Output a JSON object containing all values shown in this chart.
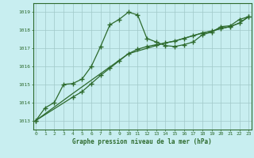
{
  "line1_x": [
    0,
    1,
    2,
    3,
    4,
    5,
    6,
    7,
    8,
    9,
    10,
    11,
    12,
    13,
    14,
    15,
    16,
    17,
    18,
    19,
    20,
    21,
    22,
    23
  ],
  "line1_y": [
    1013.0,
    1013.7,
    1014.0,
    1015.0,
    1015.05,
    1015.3,
    1016.0,
    1017.1,
    1018.3,
    1018.6,
    1019.0,
    1018.85,
    1017.55,
    1017.35,
    1017.15,
    1017.1,
    1017.2,
    1017.35,
    1017.75,
    1017.9,
    1018.2,
    1018.25,
    1018.6,
    1018.75
  ],
  "line2_x": [
    0,
    4,
    5,
    6,
    7,
    8,
    9,
    10,
    11,
    12,
    13,
    14,
    15,
    16,
    17,
    18,
    19,
    20,
    21,
    22,
    23
  ],
  "line2_y": [
    1013.0,
    1014.3,
    1014.6,
    1015.05,
    1015.5,
    1015.9,
    1016.3,
    1016.7,
    1016.95,
    1017.1,
    1017.2,
    1017.3,
    1017.4,
    1017.55,
    1017.7,
    1017.85,
    1017.95,
    1018.1,
    1018.2,
    1018.4,
    1018.75
  ],
  "line3_x": [
    0,
    4,
    10,
    14,
    15,
    16,
    17,
    18,
    19,
    20,
    21,
    22,
    23
  ],
  "line3_y": [
    1013.0,
    1014.5,
    1016.7,
    1017.3,
    1017.4,
    1017.55,
    1017.7,
    1017.85,
    1017.95,
    1018.1,
    1018.2,
    1018.4,
    1018.75
  ],
  "line_color": "#2d6a2d",
  "bg_color": "#c8eef0",
  "grid_color": "#a0c8c8",
  "xlabel": "Graphe pression niveau de la mer (hPa)",
  "ylim": [
    1012.5,
    1019.5
  ],
  "xlim": [
    -0.3,
    23.3
  ],
  "yticks": [
    1013,
    1014,
    1015,
    1016,
    1017,
    1018,
    1019
  ],
  "xticks": [
    0,
    1,
    2,
    3,
    4,
    5,
    6,
    7,
    8,
    9,
    10,
    11,
    12,
    13,
    14,
    15,
    16,
    17,
    18,
    19,
    20,
    21,
    22,
    23
  ]
}
